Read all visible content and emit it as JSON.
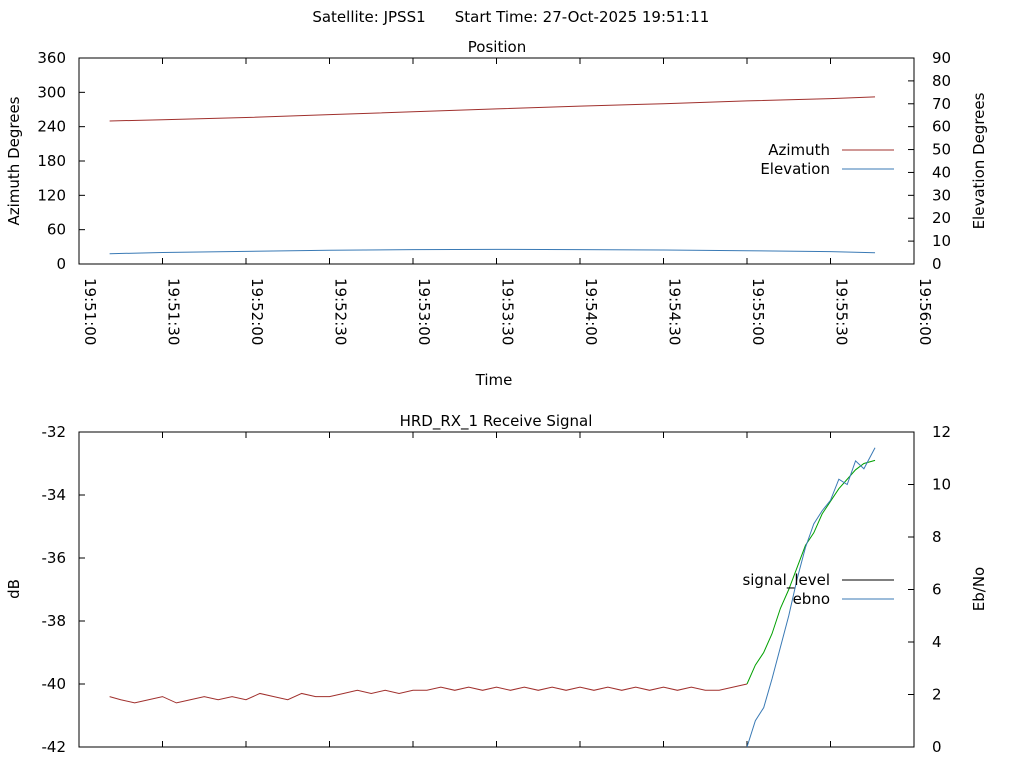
{
  "header": {
    "satellite_label": "Satellite: JPSS1",
    "start_time_label": "Start Time: 27-Oct-2025 19:51:11"
  },
  "chart_data": [
    {
      "type": "line",
      "title": "Position",
      "xlabel": "Time",
      "ylabel": "Azimuth Degrees",
      "y2label": "Elevation Degrees",
      "x_tick_labels": [
        "19:51:00",
        "19:51:30",
        "19:52:00",
        "19:52:30",
        "19:53:00",
        "19:53:30",
        "19:54:00",
        "19:54:30",
        "19:55:00",
        "19:55:30",
        "19:56:00"
      ],
      "xlim": [
        "19:51:00",
        "19:56:00"
      ],
      "ylim": [
        0,
        360
      ],
      "y_ticks": [
        0,
        60,
        120,
        180,
        240,
        300,
        360
      ],
      "y2lim": [
        0,
        90
      ],
      "y2_ticks": [
        0,
        10,
        20,
        30,
        40,
        50,
        60,
        70,
        80,
        90
      ],
      "legend_position": "right",
      "grid": false,
      "series": [
        {
          "name": "Azimuth",
          "axis": "y",
          "color": "#a0302d",
          "x": [
            "19:51:11",
            "19:51:30",
            "19:52:00",
            "19:52:30",
            "19:53:00",
            "19:53:30",
            "19:54:00",
            "19:54:30",
            "19:55:00",
            "19:55:30",
            "19:55:46"
          ],
          "values": [
            250,
            252,
            256,
            261,
            266,
            271,
            276,
            280,
            285,
            289,
            292
          ]
        },
        {
          "name": "Elevation",
          "axis": "y2",
          "color": "#3a7ab5",
          "x": [
            "19:51:11",
            "19:51:30",
            "19:52:00",
            "19:52:30",
            "19:53:00",
            "19:53:30",
            "19:54:00",
            "19:54:30",
            "19:55:00",
            "19:55:30",
            "19:55:46"
          ],
          "values": [
            4.5,
            5.0,
            5.5,
            6.0,
            6.3,
            6.4,
            6.3,
            6.1,
            5.8,
            5.4,
            4.9
          ]
        }
      ]
    },
    {
      "type": "line",
      "title": "HRD_RX_1 Receive Signal",
      "xlabel": "",
      "ylabel": "dB",
      "y2label": "Eb/No",
      "xlim": [
        "19:51:00",
        "19:56:00"
      ],
      "ylim": [
        -42,
        -32
      ],
      "y_ticks": [
        -42,
        -40,
        -38,
        -36,
        -34,
        -32
      ],
      "y2lim": [
        0,
        12
      ],
      "y2_ticks": [
        0,
        2,
        4,
        6,
        8,
        10,
        12
      ],
      "legend_position": "right",
      "grid": false,
      "series": [
        {
          "name": "signal_level",
          "axis": "y",
          "color": "#000000",
          "segment_colors": [
            {
              "from": "19:51:11",
              "to": "19:55:00",
              "color": "#a0302d"
            },
            {
              "from": "19:55:00",
              "to": "19:55:46",
              "color": "#00a000"
            }
          ],
          "x": [
            "19:51:11",
            "19:51:15",
            "19:51:20",
            "19:51:25",
            "19:51:30",
            "19:51:35",
            "19:51:40",
            "19:51:45",
            "19:51:50",
            "19:51:55",
            "19:52:00",
            "19:52:05",
            "19:52:10",
            "19:52:15",
            "19:52:20",
            "19:52:25",
            "19:52:30",
            "19:52:35",
            "19:52:40",
            "19:52:45",
            "19:52:50",
            "19:52:55",
            "19:53:00",
            "19:53:05",
            "19:53:10",
            "19:53:15",
            "19:53:20",
            "19:53:25",
            "19:53:30",
            "19:53:35",
            "19:53:40",
            "19:53:45",
            "19:53:50",
            "19:53:55",
            "19:54:00",
            "19:54:05",
            "19:54:10",
            "19:54:15",
            "19:54:20",
            "19:54:25",
            "19:54:30",
            "19:54:35",
            "19:54:40",
            "19:54:45",
            "19:54:50",
            "19:54:55",
            "19:55:00",
            "19:55:03",
            "19:55:06",
            "19:55:09",
            "19:55:12",
            "19:55:15",
            "19:55:18",
            "19:55:21",
            "19:55:24",
            "19:55:27",
            "19:55:30",
            "19:55:33",
            "19:55:36",
            "19:55:39",
            "19:55:42",
            "19:55:46"
          ],
          "values": [
            -40.4,
            -40.5,
            -40.6,
            -40.5,
            -40.4,
            -40.6,
            -40.5,
            -40.4,
            -40.5,
            -40.4,
            -40.5,
            -40.3,
            -40.4,
            -40.5,
            -40.3,
            -40.4,
            -40.4,
            -40.3,
            -40.2,
            -40.3,
            -40.2,
            -40.3,
            -40.2,
            -40.2,
            -40.1,
            -40.2,
            -40.1,
            -40.2,
            -40.1,
            -40.2,
            -40.1,
            -40.2,
            -40.1,
            -40.2,
            -40.1,
            -40.2,
            -40.1,
            -40.2,
            -40.1,
            -40.2,
            -40.1,
            -40.2,
            -40.1,
            -40.2,
            -40.2,
            -40.1,
            -40.0,
            -39.4,
            -39.0,
            -38.4,
            -37.6,
            -37.0,
            -36.3,
            -35.6,
            -35.2,
            -34.6,
            -34.2,
            -33.8,
            -33.5,
            -33.2,
            -33.0,
            -32.9
          ]
        },
        {
          "name": "ebno",
          "axis": "y2",
          "color": "#3a7ab5",
          "x": [
            "19:55:00",
            "19:55:03",
            "19:55:06",
            "19:55:09",
            "19:55:12",
            "19:55:15",
            "19:55:18",
            "19:55:21",
            "19:55:24",
            "19:55:27",
            "19:55:30",
            "19:55:33",
            "19:55:36",
            "19:55:39",
            "19:55:42",
            "19:55:46"
          ],
          "values": [
            0.0,
            1.0,
            1.5,
            2.6,
            3.8,
            5.0,
            6.4,
            7.6,
            8.5,
            9.0,
            9.4,
            10.2,
            10.0,
            10.9,
            10.6,
            11.4
          ]
        }
      ]
    }
  ]
}
